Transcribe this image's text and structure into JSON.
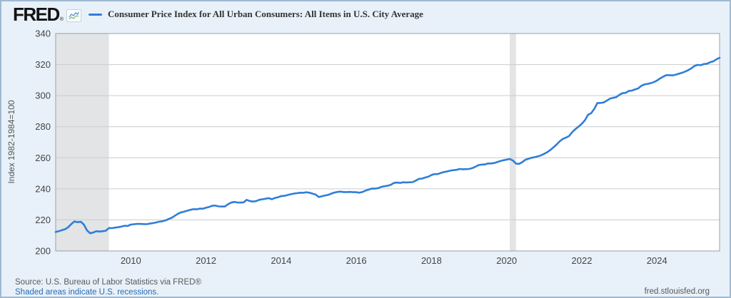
{
  "header": {
    "logo_text": "FRED",
    "logo_registered": "®",
    "series_title": "Consumer Price Index for All Urban Consumers: All Items in U.S. City Average"
  },
  "footer": {
    "source_text": "Source: U.S. Bureau of Labor Statistics via FRED®",
    "recession_note": "Shaded areas indicate U.S. recessions.",
    "site_url": "fred.stlouisfed.org"
  },
  "colors": {
    "line": "#2f7ed8",
    "background": "#e8f1f9",
    "frame_border": "#9fb9d0",
    "plot_background": "#ffffff",
    "grid": "#cccccc",
    "plot_border": "#9e9e9e",
    "recession": "#e2e4e6",
    "tick_text": "#444444",
    "footer_text": "#595959",
    "link": "#2a6bb3"
  },
  "chart_data": {
    "type": "line",
    "title": "Consumer Price Index for All Urban Consumers: All Items in U.S. City Average",
    "xlabel": "",
    "ylabel": "Index 1982-1984=100",
    "ylim": [
      200,
      340
    ],
    "yticks": [
      200,
      220,
      240,
      260,
      280,
      300,
      320,
      340
    ],
    "xticks": [
      2010,
      2012,
      2014,
      2016,
      2018,
      2020,
      2022,
      2024
    ],
    "x_domain": [
      2008.0,
      2025.6667
    ],
    "grid": true,
    "legend_position": "top",
    "frequency": "monthly",
    "start": {
      "year": 2008,
      "month": 1
    },
    "end": {
      "year": 2025,
      "month": 9
    },
    "recessions": [
      {
        "start": 2007.917,
        "end": 2009.417
      },
      {
        "start": 2020.083,
        "end": 2020.25
      }
    ],
    "series": [
      {
        "name": "Consumer Price Index for All Urban Consumers: All Items in U.S. City Average",
        "values": [
          212.2,
          212.7,
          213.4,
          214.0,
          215.3,
          217.3,
          219.0,
          218.5,
          218.8,
          217.0,
          213.2,
          211.4,
          211.9,
          212.7,
          212.5,
          212.7,
          213.0,
          214.8,
          214.7,
          215.0,
          215.3,
          215.7,
          216.2,
          216.1,
          217.0,
          217.2,
          217.4,
          217.4,
          217.3,
          217.2,
          217.6,
          217.9,
          218.3,
          218.8,
          219.1,
          219.6,
          220.5,
          221.3,
          222.6,
          223.9,
          224.8,
          225.3,
          225.9,
          226.5,
          226.9,
          226.8,
          227.2,
          227.2,
          227.8,
          228.3,
          229.1,
          229.2,
          228.7,
          228.6,
          228.6,
          230.0,
          231.1,
          231.6,
          231.2,
          231.1,
          231.3,
          232.9,
          232.1,
          231.8,
          232.1,
          232.9,
          233.3,
          233.6,
          234.0,
          233.3,
          234.1,
          234.6,
          235.3,
          235.5,
          236.0,
          236.5,
          236.9,
          237.2,
          237.5,
          237.4,
          237.8,
          237.5,
          236.9,
          236.3,
          234.7,
          235.2,
          235.7,
          236.1,
          236.9,
          237.6,
          238.0,
          238.2,
          237.9,
          237.9,
          238.0,
          237.8,
          237.8,
          237.5,
          238.0,
          238.9,
          239.5,
          240.2,
          240.1,
          240.5,
          241.2,
          241.7,
          242.0,
          242.6,
          243.8,
          244.0,
          243.8,
          244.2,
          244.1,
          244.2,
          244.3,
          245.3,
          246.4,
          246.6,
          247.3,
          247.8,
          248.9,
          249.5,
          249.5,
          250.2,
          250.8,
          251.2,
          251.7,
          252.0,
          252.2,
          252.8,
          252.6,
          252.7,
          252.8,
          253.3,
          254.2,
          255.2,
          255.6,
          255.7,
          256.3,
          256.3,
          256.6,
          257.2,
          257.9,
          258.4,
          258.8,
          259.2,
          258.2,
          256.2,
          256.1,
          257.2,
          258.7,
          259.4,
          260.0,
          260.4,
          260.9,
          261.6,
          262.5,
          263.6,
          265.1,
          266.8,
          268.6,
          270.7,
          272.2,
          273.0,
          274.1,
          276.6,
          278.5,
          280.1,
          281.9,
          284.2,
          287.7,
          288.7,
          291.5,
          295.3,
          295.3,
          295.6,
          296.8,
          298.1,
          298.6,
          299.0,
          300.5,
          301.6,
          301.8,
          303.0,
          303.3,
          304.0,
          304.6,
          306.3,
          307.2,
          307.6,
          308.0,
          308.7,
          309.7,
          311.1,
          312.2,
          313.2,
          313.2,
          313.0,
          313.5,
          314.1,
          314.7,
          315.5,
          316.4,
          317.6,
          319.1,
          319.8,
          319.6,
          320.3,
          320.6,
          321.5,
          322.1,
          323.4,
          324.4
        ]
      }
    ]
  }
}
